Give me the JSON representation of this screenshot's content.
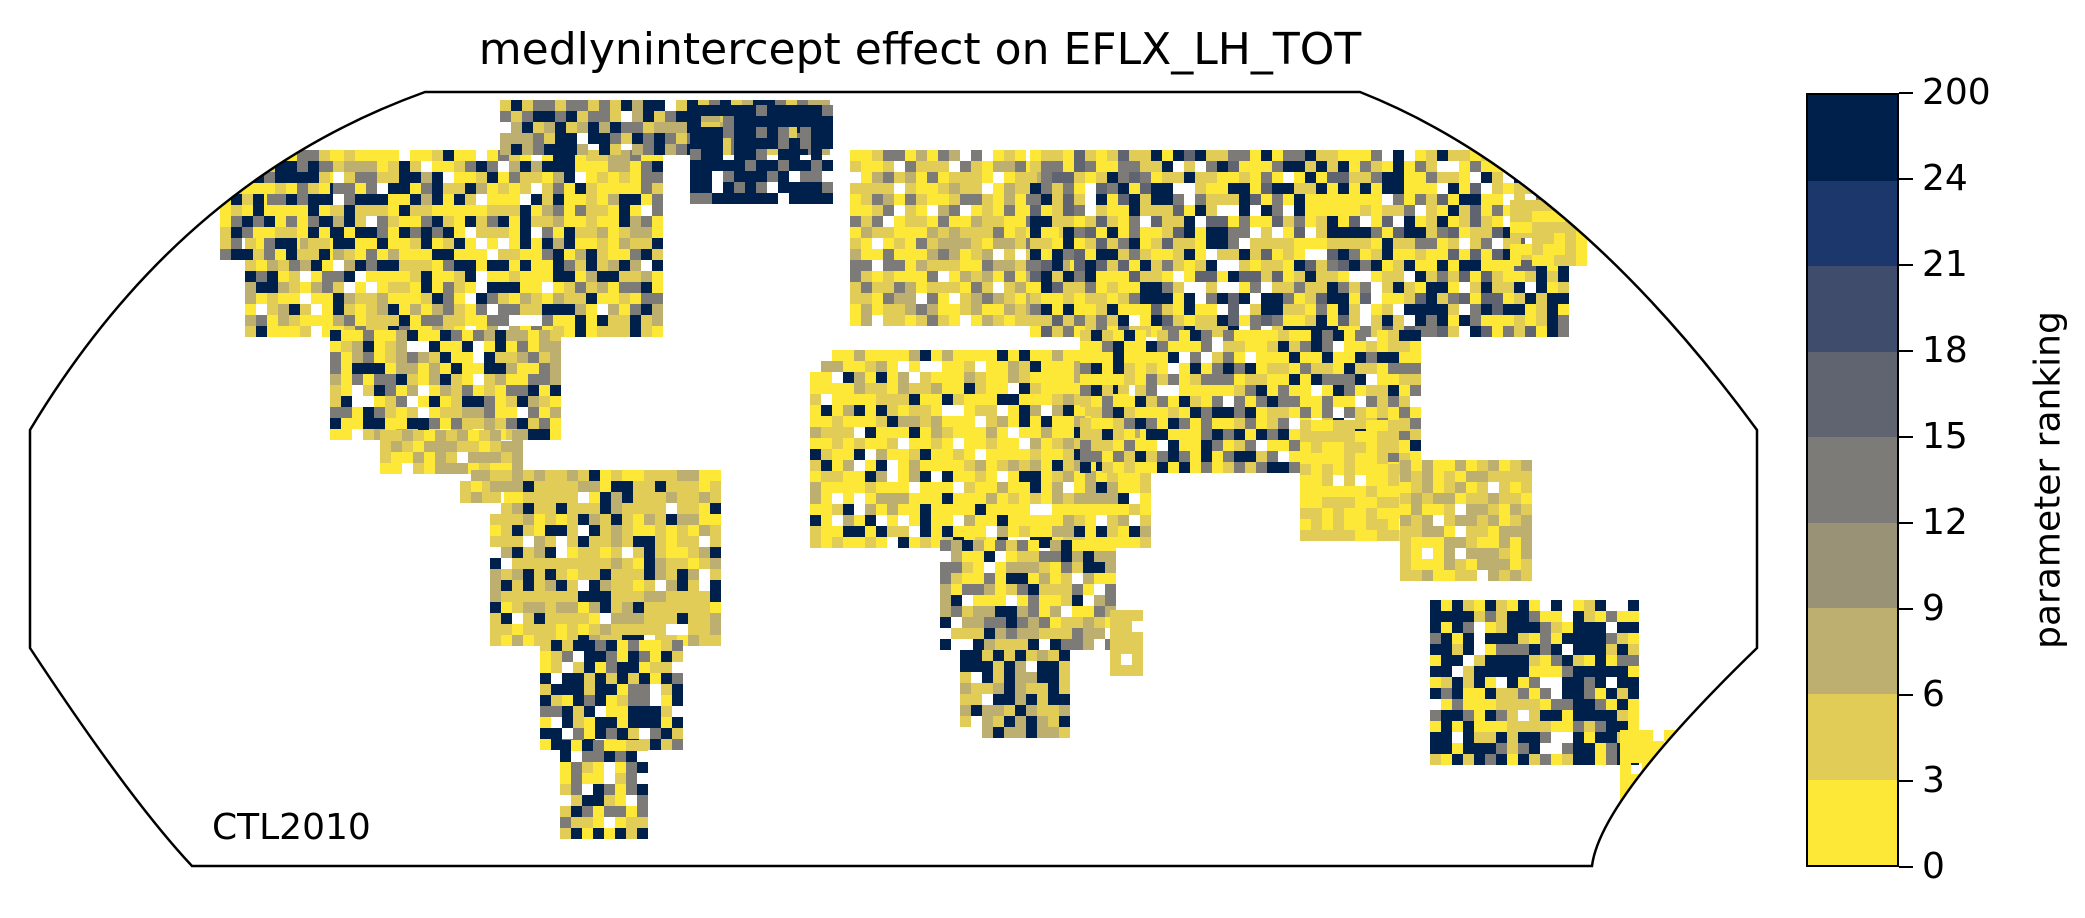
{
  "chart_data": {
    "type": "heatmap",
    "title": "medlynintercept effect on EFLX_LH_TOT",
    "projection": "robinson-like world map",
    "annotation": "CTL2010",
    "colorbar": {
      "label": "parameter ranking",
      "tick_labels": [
        "0",
        "3",
        "6",
        "9",
        "12",
        "15",
        "18",
        "21",
        "24",
        "200"
      ],
      "bins": [
        {
          "range": "0-3",
          "color": "#fde737"
        },
        {
          "range": "3-6",
          "color": "#e1cc57"
        },
        {
          "range": "6-9",
          "color": "#bdaf6f"
        },
        {
          "range": "9-12",
          "color": "#9a9276"
        },
        {
          "range": "12-15",
          "color": "#7c7b78"
        },
        {
          "range": "15-18",
          "color": "#5f6470"
        },
        {
          "range": "18-21",
          "color": "#404c6c"
        },
        {
          "range": "21-24",
          "color": "#1b376b"
        },
        {
          "range": "24-200",
          "color": "#00204c"
        }
      ]
    },
    "land_regions": [
      {
        "name": "North America",
        "dominant_ranking": "0-9",
        "high_ranking_patches": [
          "Canadian Arctic",
          "western US",
          "Mexico"
        ]
      },
      {
        "name": "Greenland",
        "dominant_ranking": "24-200"
      },
      {
        "name": "South America",
        "dominant_ranking": "3-9",
        "high_ranking_patches": [
          "Argentina",
          "eastern Brazil"
        ]
      },
      {
        "name": "Europe",
        "dominant_ranking": "0-12"
      },
      {
        "name": "Africa",
        "dominant_ranking": "0-9",
        "high_ranking_patches": [
          "Sahara",
          "southern Africa"
        ]
      },
      {
        "name": "Asia",
        "dominant_ranking": "0-12",
        "high_ranking_patches": [
          "Central Asia",
          "Mongolia",
          "Tibet"
        ]
      },
      {
        "name": "Australia",
        "dominant_ranking": "24-200"
      }
    ]
  }
}
